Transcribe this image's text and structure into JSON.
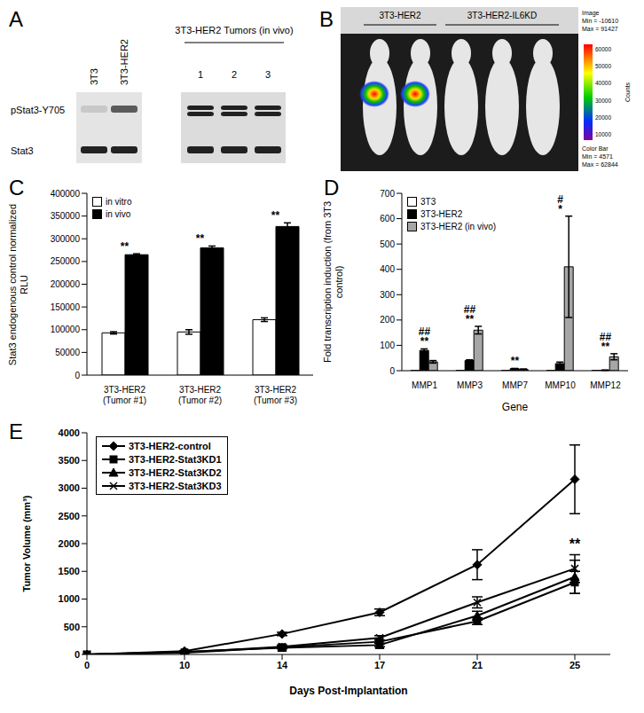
{
  "panels": [
    {
      "panel": "A",
      "blot": {
        "lanes": [
          "3T3",
          "3T3-HER2"
        ],
        "group_label": "3T3-HER2 Tumors (in vivo)",
        "group_lanes": [
          "1",
          "2",
          "3"
        ],
        "rows": [
          "pStat3-Y705",
          "Stat3"
        ]
      }
    },
    {
      "panel": "B",
      "image": {
        "groups": [
          "3T3-HER2",
          "3T3-HER2-IL6KD"
        ],
        "colorbar_header": [
          "Image",
          "Min = -10610",
          "Max = 91427"
        ],
        "colorbar_label": "Counts",
        "colorbar_ticks": [
          60000,
          50000,
          40000,
          30000,
          20000,
          10000
        ],
        "colorbar_footer": [
          "Color Bar",
          "Min = 4571",
          "Max = 62844"
        ]
      }
    }
  ],
  "chart_data": [
    {
      "panel": "C",
      "type": "bar",
      "y_label": "Stat3 endogenous control normalized RLU",
      "categories": [
        "3T3-HER2 (Tumor #1)",
        "3T3-HER2 (Tumor #2)",
        "3T3-HER2 (Tumor #3)"
      ],
      "series": [
        {
          "name": "in vitro",
          "color": "#ffffff",
          "values": [
            93000,
            95000,
            122000
          ],
          "errors": [
            2500,
            5000,
            4000
          ]
        },
        {
          "name": "in vivo",
          "color": "#000000",
          "values": [
            265000,
            280000,
            327000
          ],
          "errors": [
            2000,
            4000,
            8000
          ]
        }
      ],
      "annotations": [
        [
          "**"
        ],
        [
          "**"
        ],
        [
          "**"
        ]
      ],
      "ylim": [
        0,
        400000
      ],
      "yticks": [
        0,
        50000,
        100000,
        150000,
        200000,
        250000,
        300000,
        350000,
        400000
      ],
      "grid": false,
      "legend": "upper left"
    },
    {
      "panel": "D",
      "type": "bar",
      "x_label": "Gene",
      "y_label": "Fold transcription induction (from 3T3 control)",
      "categories": [
        "MMP1",
        "MMP3",
        "MMP7",
        "MMP10",
        "MMP12"
      ],
      "series": [
        {
          "name": "3T3",
          "color": "#ffffff",
          "values": [
            1,
            1,
            1,
            1,
            1
          ],
          "errors": [
            0,
            0,
            0,
            0,
            0
          ]
        },
        {
          "name": "3T3-HER2",
          "color": "#000000",
          "values": [
            80,
            40,
            8,
            28,
            2
          ],
          "errors": [
            6,
            3,
            1,
            6,
            0.5
          ]
        },
        {
          "name": "3T3-HER2 (in vivo)",
          "color": "#a6a6a6",
          "values": [
            35,
            160,
            5,
            410,
            55
          ],
          "errors": [
            5,
            15,
            2,
            200,
            12
          ]
        }
      ],
      "annotations": [
        [
          "##",
          "**"
        ],
        [
          "##",
          "**"
        ],
        [
          "**"
        ],
        [
          "#",
          "*"
        ],
        [
          "##",
          "**"
        ]
      ],
      "ylim": [
        0,
        700
      ],
      "yticks": [
        0,
        100,
        200,
        300,
        400,
        500,
        600,
        700
      ],
      "grid": false,
      "legend": "upper left"
    },
    {
      "panel": "E",
      "type": "line",
      "x_label": "Days Post-Implantation",
      "y_label": "Tumor Volume (mm³)",
      "categories": [
        "0",
        "10",
        "14",
        "17",
        "21",
        "25"
      ],
      "series": [
        {
          "name": "3T3-HER2-control",
          "color": "#000000",
          "marker": "diamond",
          "values": [
            0,
            60,
            370,
            760,
            1620,
            3160
          ],
          "errors": [
            0,
            10,
            30,
            60,
            270,
            620
          ]
        },
        {
          "name": "3T3-HER2-Stat3KD1",
          "color": "#000000",
          "marker": "square",
          "values": [
            0,
            30,
            130,
            230,
            600,
            1300
          ],
          "errors": [
            0,
            5,
            20,
            30,
            60,
            200
          ]
        },
        {
          "name": "3T3-HER2-Stat3KD2",
          "color": "#000000",
          "marker": "triangle",
          "values": [
            0,
            50,
            120,
            170,
            700,
            1400
          ],
          "errors": [
            0,
            10,
            20,
            30,
            80,
            300
          ]
        },
        {
          "name": "3T3-HER2-Stat3KD3",
          "color": "#000000",
          "marker": "x",
          "values": [
            0,
            40,
            140,
            300,
            940,
            1550
          ],
          "errors": [
            0,
            10,
            30,
            40,
            100,
            250
          ]
        }
      ],
      "annotations": [
        {
          "category": "25",
          "y": 1900,
          "text": "**"
        }
      ],
      "ylim": [
        0,
        4000
      ],
      "yticks": [
        0,
        500,
        1000,
        1500,
        2000,
        2500,
        3000,
        3500,
        4000
      ],
      "grid": false,
      "legend": "upper left"
    }
  ]
}
